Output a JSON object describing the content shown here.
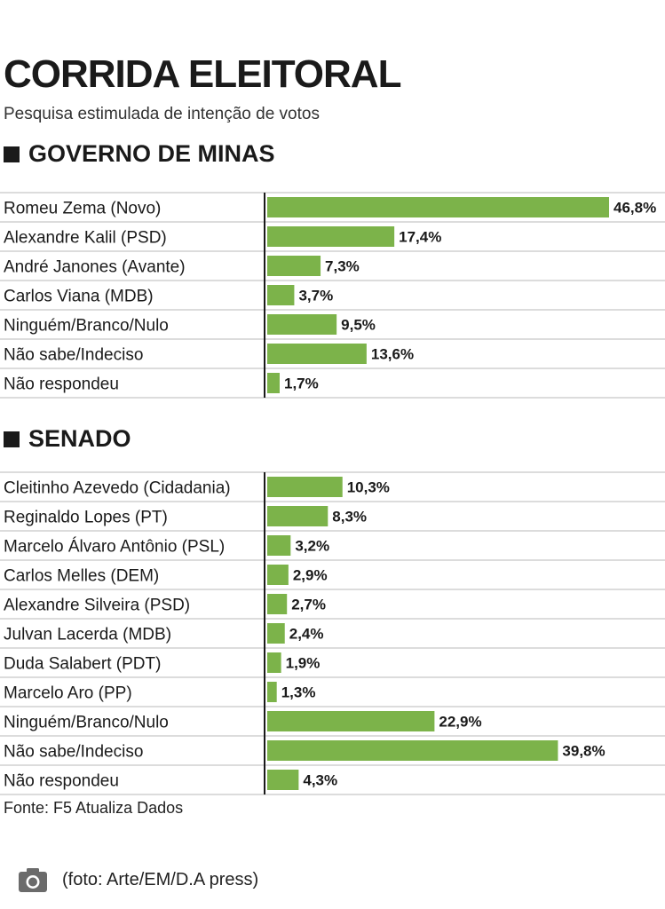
{
  "title": "CORRIDA ELEITORAL",
  "subtitle": "Pesquisa estimulada de intenção de votos",
  "source": "Fonte: F5 Atualiza Dados",
  "caption": "(foto: Arte/EM/D.A press)",
  "colors": {
    "bar": "#7cb34a",
    "text": "#1a1a1a",
    "rule": "#d0d0d0"
  },
  "icons": {
    "caption": "camera-icon"
  },
  "chart_data": [
    {
      "type": "bar",
      "orientation": "horizontal",
      "title": "GOVERNO DE MINAS",
      "categories": [
        "Romeu Zema (Novo)",
        "Alexandre Kalil (PSD)",
        "André Janones (Avante)",
        "Carlos Viana (MDB)",
        "Ninguém/Branco/Nulo",
        "Não sabe/Indeciso",
        "Não respondeu"
      ],
      "values": [
        46.8,
        17.4,
        7.3,
        3.7,
        9.5,
        13.6,
        1.7
      ],
      "value_labels": [
        "46,8%",
        "17,4%",
        "7,3%",
        "3,7%",
        "9,5%",
        "13,6%",
        "1,7%"
      ],
      "unit": "%",
      "xlim": [
        0,
        50
      ]
    },
    {
      "type": "bar",
      "orientation": "horizontal",
      "title": "SENADO",
      "categories": [
        "Cleitinho Azevedo (Cidadania)",
        "Reginaldo Lopes (PT)",
        "Marcelo Álvaro Antônio (PSL)",
        "Carlos Melles (DEM)",
        "Alexandre Silveira (PSD)",
        "Julvan Lacerda (MDB)",
        "Duda Salabert (PDT)",
        "Marcelo Aro (PP)",
        "Ninguém/Branco/Nulo",
        "Não sabe/Indeciso",
        "Não respondeu"
      ],
      "values": [
        10.3,
        8.3,
        3.2,
        2.9,
        2.7,
        2.4,
        1.9,
        1.3,
        22.9,
        39.8,
        4.3
      ],
      "value_labels": [
        "10,3%",
        "8,3%",
        "3,2%",
        "2,9%",
        "2,7%",
        "2,4%",
        "1,9%",
        "1,3%",
        "22,9%",
        "39,8%",
        "4,3%"
      ],
      "unit": "%",
      "xlim": [
        0,
        50
      ]
    }
  ]
}
